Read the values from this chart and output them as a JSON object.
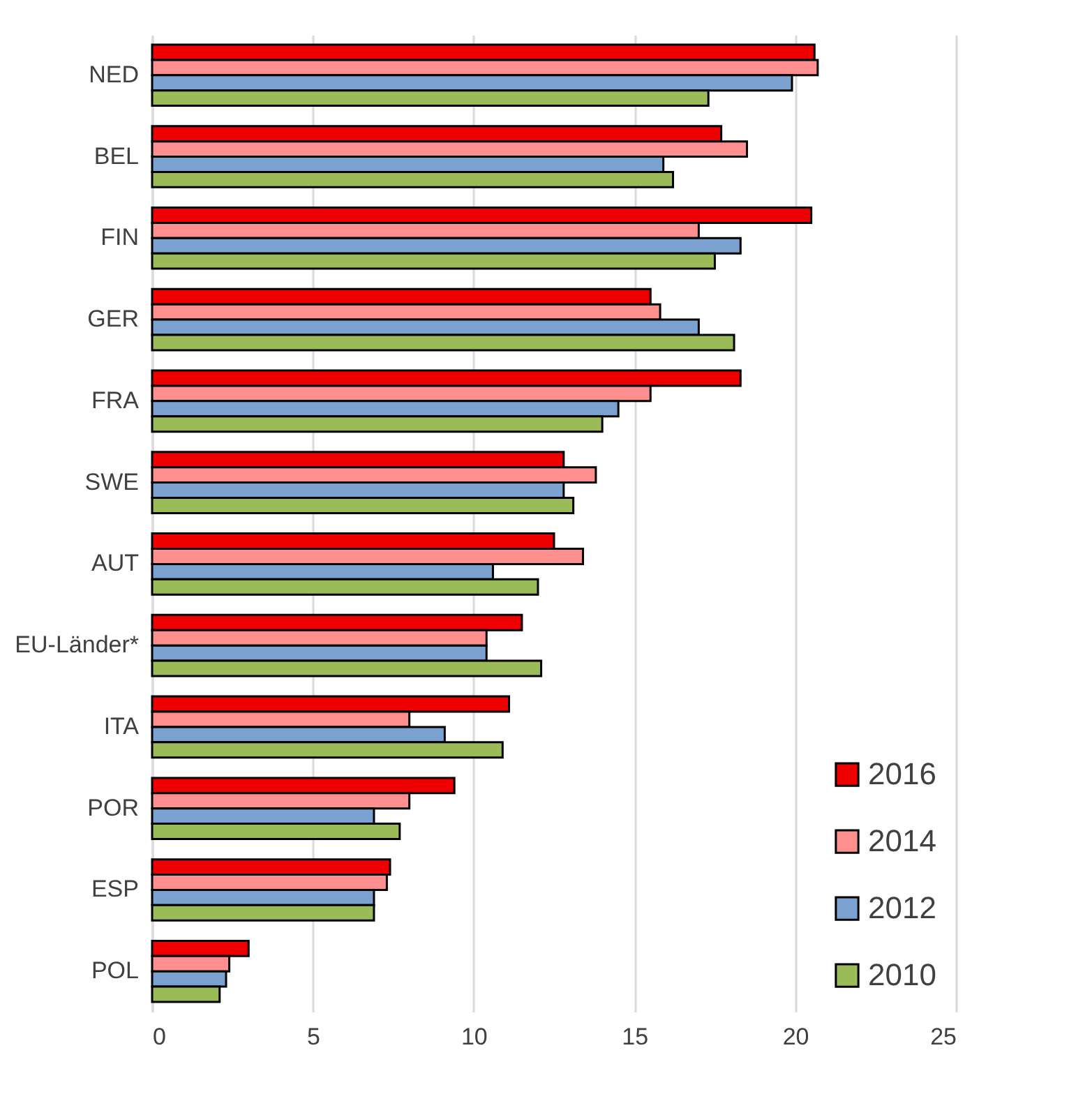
{
  "chart_data": {
    "type": "bar",
    "orientation": "horizontal",
    "categories": [
      "NED",
      "BEL",
      "FIN",
      "GER",
      "FRA",
      "SWE",
      "AUT",
      "EU-Länder*",
      "ITA",
      "POR",
      "ESP",
      "POL"
    ],
    "series": [
      {
        "name": "2016",
        "color": "#ee0000",
        "values": [
          20.6,
          17.7,
          20.5,
          15.5,
          18.3,
          12.8,
          12.5,
          11.5,
          11.1,
          9.4,
          7.4,
          3.0
        ]
      },
      {
        "name": "2014",
        "color": "#ff8f8f",
        "values": [
          20.7,
          18.5,
          17.0,
          15.8,
          15.5,
          13.8,
          13.4,
          10.4,
          8.0,
          8.0,
          7.3,
          2.4
        ]
      },
      {
        "name": "2012",
        "color": "#7ba1d0",
        "values": [
          19.9,
          15.9,
          18.3,
          17.0,
          14.5,
          12.8,
          10.6,
          10.4,
          9.1,
          6.9,
          6.9,
          2.3
        ]
      },
      {
        "name": "2010",
        "color": "#9bbb59",
        "values": [
          17.3,
          16.2,
          17.5,
          18.1,
          14.0,
          13.1,
          12.0,
          12.1,
          10.9,
          7.7,
          6.9,
          2.1
        ]
      }
    ],
    "xlim": [
      0,
      25
    ],
    "xticks": [
      0,
      5,
      10,
      15,
      20,
      25
    ],
    "grid": "x",
    "legend": "bottom right"
  }
}
